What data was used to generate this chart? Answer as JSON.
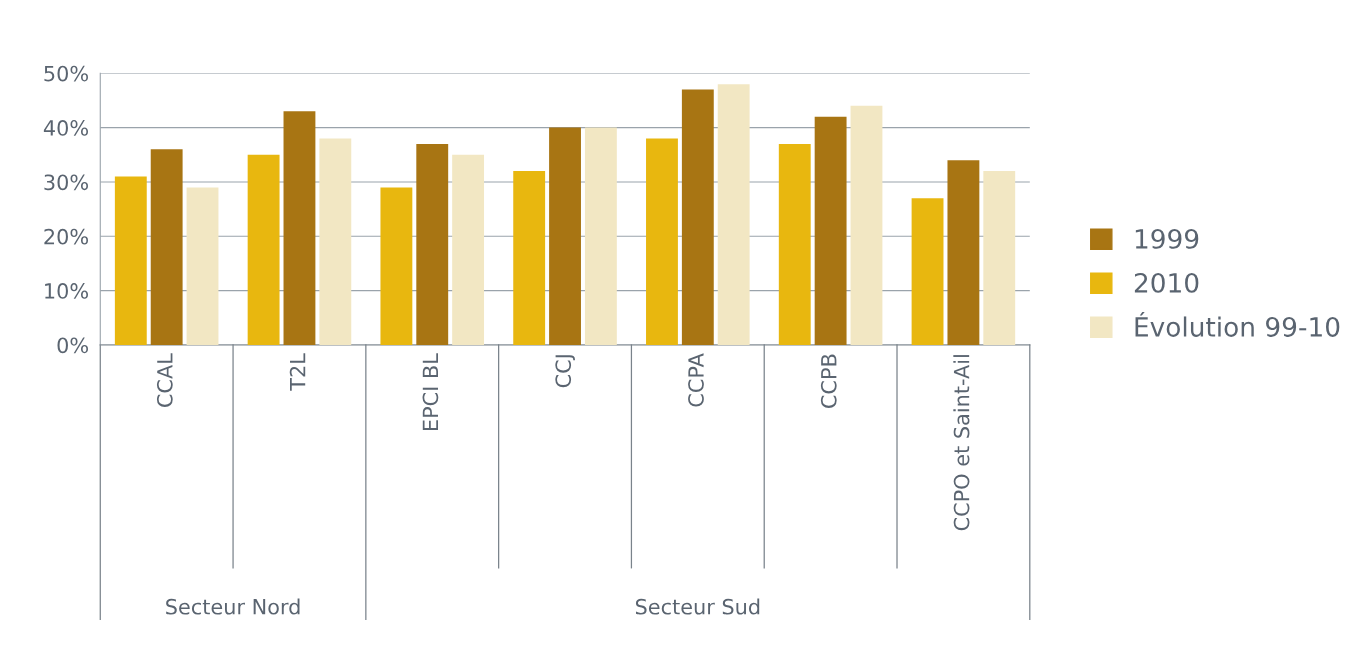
{
  "chart_data": {
    "type": "bar",
    "categories": [
      "CCAL",
      "T2L",
      "EPCI BL",
      "CCJ",
      "CCPA",
      "CCPB",
      "CCPO et Saint-Ail"
    ],
    "series": [
      {
        "name": "2010",
        "color": "#e8b70f",
        "values": [
          31,
          35,
          29,
          32,
          38,
          37,
          27
        ]
      },
      {
        "name": "1999",
        "color": "#a87513",
        "values": [
          36,
          43,
          37,
          40,
          47,
          42,
          34
        ]
      },
      {
        "name": "Évolution 99-10",
        "color": "#f2e7c3",
        "values": [
          29,
          38,
          35,
          40,
          48,
          44,
          32
        ]
      }
    ],
    "ylim": [
      0,
      50
    ],
    "yticks": [
      {
        "value": 0,
        "label": "0%"
      },
      {
        "value": 10,
        "label": "10%"
      },
      {
        "value": 20,
        "label": "20%"
      },
      {
        "value": 30,
        "label": "30%"
      },
      {
        "value": 40,
        "label": "40%"
      },
      {
        "value": 50,
        "label": "50%"
      }
    ],
    "annotations": [
      "Secteur Nord",
      "Secteur Sud"
    ],
    "grid": "y",
    "legend": "right"
  }
}
